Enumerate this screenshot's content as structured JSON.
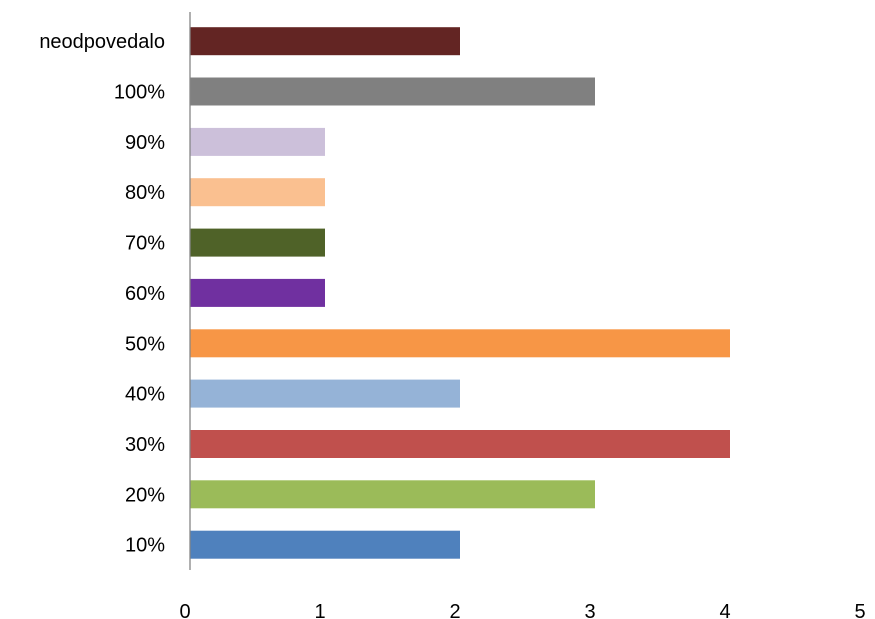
{
  "chart_data": {
    "type": "bar",
    "orientation": "horizontal",
    "title": "",
    "xlabel": "",
    "ylabel": "",
    "categories": [
      "10%",
      "20%",
      "30%",
      "40%",
      "50%",
      "60%",
      "70%",
      "80%",
      "90%",
      "100%",
      "neodpovedalo"
    ],
    "values": [
      2,
      3,
      4,
      2,
      4,
      1,
      1,
      1,
      1,
      3,
      2
    ],
    "colors": [
      "#4F81BD",
      "#9BBB59",
      "#C0504D",
      "#95B3D7",
      "#F79646",
      "#7030A0",
      "#4F6228",
      "#FAC090",
      "#CCC0DA",
      "#808080",
      "#632523"
    ],
    "xlim": [
      0,
      5
    ],
    "x_ticks": [
      "0",
      "1",
      "2",
      "3",
      "4",
      "5"
    ],
    "grid": false,
    "legend": "none"
  }
}
